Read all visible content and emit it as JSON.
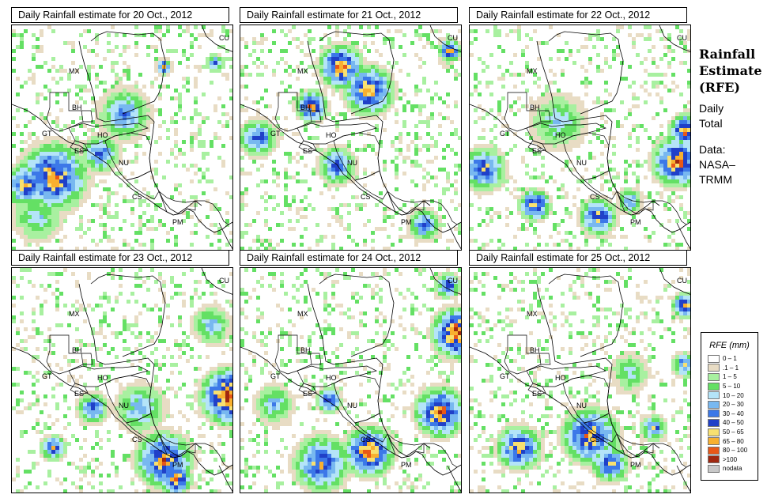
{
  "panels": [
    {
      "title": "Daily Rainfall estimate for  20 Oct., 2012"
    },
    {
      "title": "Daily Rainfall estimate for  21 Oct., 2012"
    },
    {
      "title": "Daily Rainfall estimate for  22 Oct., 2012"
    },
    {
      "title": "Daily Rainfall estimate for  23 Oct., 2012"
    },
    {
      "title": "Daily Rainfall estimate for  24 Oct., 2012"
    },
    {
      "title": "Daily Rainfall estimate for  25 Oct., 2012"
    }
  ],
  "countries": [
    "MX",
    "BH",
    "GT",
    "HO",
    "ES",
    "NU",
    "CS",
    "PM",
    "CU"
  ],
  "side": {
    "title_line1": "Rainfall",
    "title_line2": "Estimate",
    "title_line3": "(RFE)",
    "daily": "Daily",
    "total": "Total",
    "data_label": "Data:",
    "source_line1": "NASA–",
    "source_line2": "TRMM"
  },
  "legend": {
    "title": "RFE (mm)",
    "items": [
      {
        "label": "0 – 1",
        "color": "#ffffff"
      },
      {
        "label": ".1 – 1",
        "color": "#e8dcc4"
      },
      {
        "label": "1 – 5",
        "color": "#a8f0a0"
      },
      {
        "label": "5 – 10",
        "color": "#64e064"
      },
      {
        "label": "10 – 20",
        "color": "#b4e4f8"
      },
      {
        "label": "20 – 30",
        "color": "#78b8f0"
      },
      {
        "label": "30 – 40",
        "color": "#3c78e8"
      },
      {
        "label": "40 – 50",
        "color": "#2040c8"
      },
      {
        "label": "50 – 65",
        "color": "#f8e070"
      },
      {
        "label": "65 – 80",
        "color": "#f8b030"
      },
      {
        "label": "80 – 100",
        "color": "#e85818"
      },
      {
        "label": ">100",
        "color": "#a02810"
      },
      {
        "label": "nodata",
        "color": "#c8c8c8"
      }
    ]
  }
}
